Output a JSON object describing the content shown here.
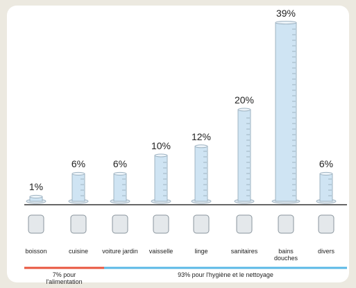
{
  "chart_data": {
    "type": "bar",
    "categories": [
      "boisson",
      "cuisine",
      "voiture jardin",
      "vaisselle",
      "linge",
      "sanitaires",
      "bains douches",
      "divers"
    ],
    "values": [
      1,
      6,
      6,
      10,
      12,
      20,
      39,
      6
    ],
    "value_labels": [
      "1%",
      "6%",
      "6%",
      "10%",
      "12%",
      "20%",
      "39%",
      "6%"
    ],
    "color": "#cfe4f3",
    "groups": [
      {
        "label": "7% pour l'alimentation",
        "color": "#e8553e"
      },
      {
        "label": "93% pour l'hygiène et le nettoyage",
        "color": "#5ab8e6"
      }
    ]
  }
}
